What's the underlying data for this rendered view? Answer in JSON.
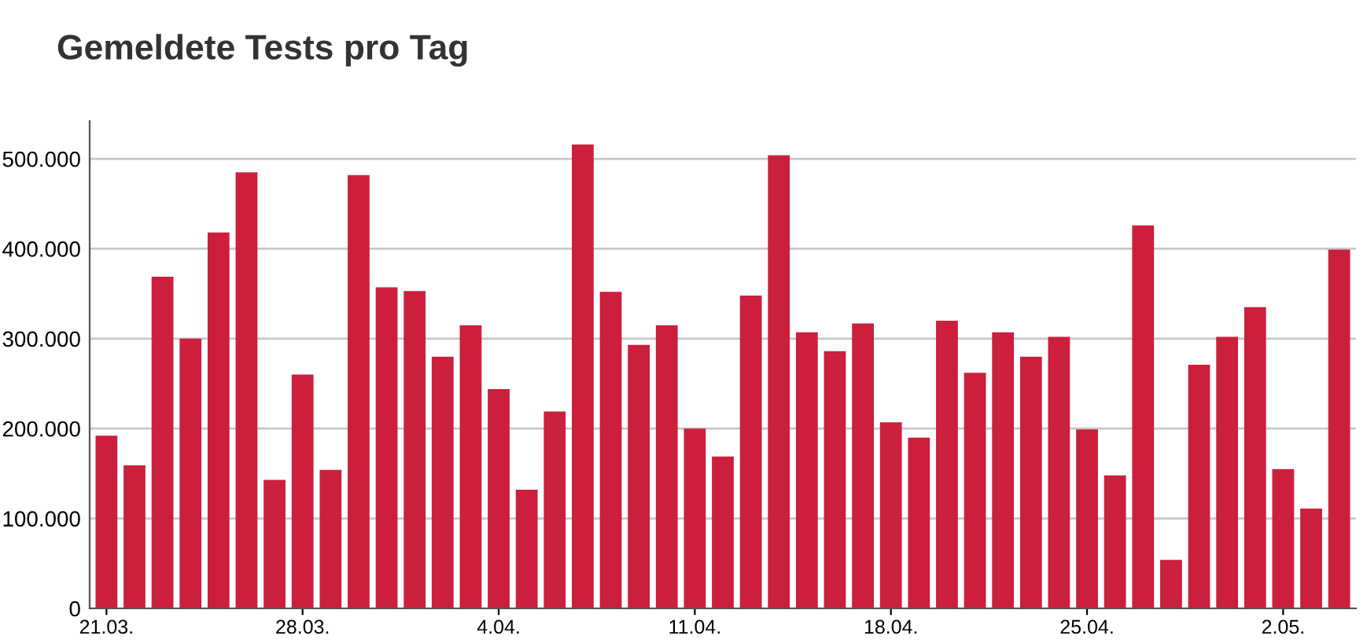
{
  "chart_data": {
    "type": "bar",
    "title": "Gemeldete Tests pro Tag",
    "categories": [
      "21.03.",
      null,
      null,
      null,
      null,
      null,
      null,
      "28.03.",
      null,
      null,
      null,
      null,
      null,
      null,
      "4.04.",
      null,
      null,
      null,
      null,
      null,
      null,
      "11.04.",
      null,
      null,
      null,
      null,
      null,
      null,
      "18.04.",
      null,
      null,
      null,
      null,
      null,
      null,
      "25.04.",
      null,
      null,
      null,
      null,
      null,
      null,
      "2.05.",
      null,
      null
    ],
    "values": [
      192000,
      159000,
      369000,
      300000,
      418000,
      485000,
      143000,
      260000,
      154000,
      482000,
      357000,
      353000,
      280000,
      315000,
      244000,
      132000,
      219000,
      516000,
      352000,
      293000,
      315000,
      200000,
      169000,
      348000,
      504000,
      307000,
      286000,
      317000,
      207000,
      190000,
      320000,
      262000,
      307000,
      280000,
      302000,
      199000,
      148000,
      426000,
      54000,
      271000,
      302000,
      335000,
      155000,
      111000,
      399000
    ],
    "color": "#cc1f3d",
    "ylim": [
      0,
      542000
    ],
    "yticks": [
      0,
      {
        "value": 100000,
        "label": "100.000"
      },
      {
        "value": 200000,
        "label": "200.000"
      },
      {
        "value": 300000,
        "label": "300.000"
      },
      {
        "value": 400000,
        "label": "400.000"
      },
      {
        "value": 500000,
        "label": "500.000"
      }
    ],
    "grid": "y"
  }
}
